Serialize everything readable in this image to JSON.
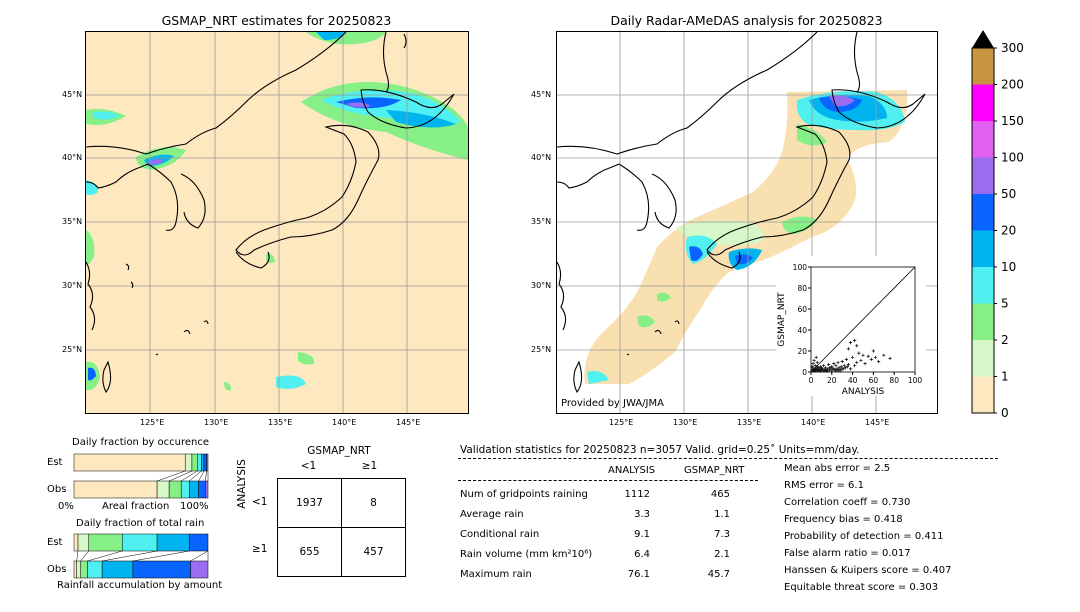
{
  "left_map": {
    "title": "GSMAP_NRT estimates for 20250823",
    "lat_labels": [
      "45°N",
      "40°N",
      "35°N",
      "30°N",
      "25°N"
    ],
    "lon_labels": [
      "125°E",
      "130°E",
      "135°E",
      "140°E",
      "145°E"
    ]
  },
  "right_map": {
    "title": "Daily Radar-AMeDAS analysis for 20250823",
    "lat_labels": [
      "45°N",
      "40°N",
      "35°N",
      "30°N",
      "25°N"
    ],
    "lon_labels": [
      "125°E",
      "130°E",
      "135°E",
      "140°E",
      "145°E"
    ],
    "credit": "Provided by JWA/JMA"
  },
  "colorbar": {
    "levels": [
      "300",
      "200",
      "150",
      "100",
      "50",
      "20",
      "10",
      "5",
      "2",
      "1",
      "0"
    ],
    "colors": [
      "#c89640",
      "#ff00ff",
      "#e060f0",
      "#9a6cf0",
      "#0a64ff",
      "#00b4f0",
      "#50f0f0",
      "#86f086",
      "#d6f8c8",
      "#fde8c0"
    ]
  },
  "chart_data": [
    {
      "type": "scatter",
      "title": "",
      "xlabel": "ANALYSIS",
      "ylabel": "GSMAP_NRT",
      "xlim": [
        0,
        100
      ],
      "ylim": [
        0,
        100
      ],
      "xticks": [
        "0",
        "20",
        "40",
        "60",
        "80",
        "100"
      ],
      "yticks": [
        "0",
        "20",
        "40",
        "60",
        "80",
        "100"
      ],
      "points": [
        [
          2,
          1
        ],
        [
          3,
          2
        ],
        [
          4,
          1
        ],
        [
          5,
          3
        ],
        [
          6,
          2
        ],
        [
          7,
          4
        ],
        [
          8,
          1
        ],
        [
          9,
          5
        ],
        [
          10,
          2
        ],
        [
          11,
          3
        ],
        [
          12,
          6
        ],
        [
          13,
          2
        ],
        [
          14,
          4
        ],
        [
          15,
          1
        ],
        [
          16,
          3
        ],
        [
          17,
          7
        ],
        [
          18,
          2
        ],
        [
          19,
          4
        ],
        [
          20,
          5
        ],
        [
          21,
          3
        ],
        [
          22,
          8
        ],
        [
          23,
          2
        ],
        [
          24,
          6
        ],
        [
          25,
          3
        ],
        [
          26,
          9
        ],
        [
          27,
          4
        ],
        [
          28,
          2
        ],
        [
          29,
          5
        ],
        [
          30,
          10
        ],
        [
          31,
          3
        ],
        [
          32,
          6
        ],
        [
          33,
          4
        ],
        [
          34,
          12
        ],
        [
          35,
          5
        ],
        [
          36,
          7
        ],
        [
          38,
          3
        ],
        [
          40,
          14
        ],
        [
          42,
          6
        ],
        [
          44,
          9
        ],
        [
          46,
          18
        ],
        [
          48,
          11
        ],
        [
          50,
          16
        ],
        [
          52,
          8
        ],
        [
          55,
          15
        ],
        [
          58,
          12
        ],
        [
          60,
          20
        ],
        [
          62,
          14
        ],
        [
          65,
          10
        ],
        [
          70,
          16
        ],
        [
          76,
          13
        ],
        [
          38,
          28
        ],
        [
          42,
          30
        ],
        [
          44,
          25
        ],
        [
          36,
          22
        ],
        [
          1,
          5
        ],
        [
          2,
          8
        ],
        [
          3,
          11
        ],
        [
          4,
          6
        ],
        [
          5,
          14
        ],
        [
          6,
          9
        ],
        [
          1,
          2
        ],
        [
          2,
          4
        ],
        [
          3,
          1
        ],
        [
          4,
          3
        ],
        [
          5,
          1
        ],
        [
          6,
          5
        ],
        [
          7,
          2
        ],
        [
          8,
          3
        ],
        [
          9,
          1
        ],
        [
          10,
          4
        ],
        [
          12,
          1
        ],
        [
          14,
          2
        ],
        [
          16,
          1
        ],
        [
          18,
          4
        ],
        [
          20,
          1
        ],
        [
          22,
          3
        ],
        [
          24,
          1
        ],
        [
          26,
          2
        ],
        [
          28,
          1
        ],
        [
          30,
          3
        ]
      ]
    },
    {
      "type": "bar",
      "title": "Daily fraction by occurence",
      "categories": [
        "Est",
        "Obs"
      ],
      "series": [
        {
          "name": "0-1",
          "values": [
            83,
            62
          ]
        },
        {
          "name": "1-2",
          "values": [
            5,
            9
          ]
        },
        {
          "name": "2-5",
          "values": [
            4,
            9
          ]
        },
        {
          "name": "5-10",
          "values": [
            3,
            6
          ]
        },
        {
          "name": "10-20",
          "values": [
            2,
            7
          ]
        },
        {
          "name": "20-50",
          "values": [
            2,
            5
          ]
        },
        {
          "name": "50+",
          "values": [
            1,
            2
          ]
        }
      ],
      "xlabel": "Areal fraction",
      "x_left": "0%",
      "x_right": "100%"
    },
    {
      "type": "bar",
      "title": "Daily fraction of total rain",
      "categories": [
        "Est",
        "Obs"
      ],
      "series": [
        {
          "name": "0-1",
          "values": [
            3,
            2
          ]
        },
        {
          "name": "1-2",
          "values": [
            8,
            3
          ]
        },
        {
          "name": "2-5",
          "values": [
            25,
            5
          ]
        },
        {
          "name": "5-10",
          "values": [
            26,
            11
          ]
        },
        {
          "name": "10-20",
          "values": [
            24,
            23
          ]
        },
        {
          "name": "20-50",
          "values": [
            14,
            43
          ]
        },
        {
          "name": "50+",
          "values": [
            0,
            13
          ]
        }
      ],
      "xlabel": "Rainfall accumulation by amount"
    }
  ],
  "contingency": {
    "col_title": "GSMAP_NRT",
    "col_labels": [
      "<1",
      "≥1"
    ],
    "row_title": "ANALYSIS",
    "row_labels": [
      "<1",
      "≥1"
    ],
    "cells": [
      [
        "1937",
        "8"
      ],
      [
        "655",
        "457"
      ]
    ]
  },
  "validation": {
    "header": "Validation statistics for 20250823  n=3057 Valid. grid=0.25˚ Units=mm/day.",
    "col_analysis": "ANALYSIS",
    "col_gsmap": "GSMAP_NRT",
    "rows": [
      {
        "label": "Num of gridpoints raining",
        "a": "1112",
        "g": "465"
      },
      {
        "label": "Average rain",
        "a": "3.3",
        "g": "1.1"
      },
      {
        "label": "Conditional rain",
        "a": "9.1",
        "g": "7.3"
      },
      {
        "label": "Rain volume (mm km²10⁶)",
        "a": "6.4",
        "g": "2.1"
      },
      {
        "label": "Maximum rain",
        "a": "76.1",
        "g": "45.7"
      }
    ],
    "scores": [
      "Mean abs error =    2.5",
      "RMS error =    6.1",
      "Correlation coeff =  0.730",
      "Frequency bias =  0.418",
      "Probability of detection =  0.411",
      "False alarm ratio =  0.017",
      "Hanssen & Kuipers score =  0.407",
      "Equitable threat score =  0.303"
    ]
  }
}
